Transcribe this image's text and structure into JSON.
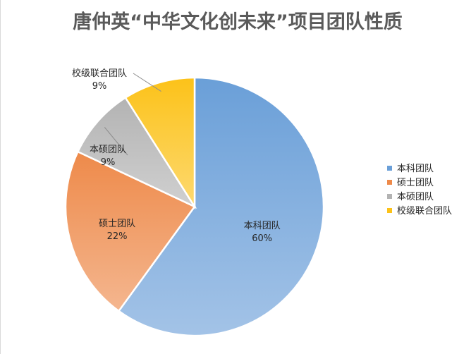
{
  "chart_data": {
    "type": "pie",
    "title": "唐仲英“中华文化创未来”项目团队性质",
    "categories": [
      "本科团队",
      "硕士团队",
      "本硕团队",
      "校级联合团队"
    ],
    "values": [
      60,
      22,
      9,
      9
    ],
    "value_labels": [
      "60%",
      "22%",
      "9%",
      "9%"
    ],
    "colors": [
      "#6a9fd8",
      "#ee8a4a",
      "#b3b3b3",
      "#fcc219"
    ],
    "legend_position": "right",
    "data_label_position": "inside"
  }
}
